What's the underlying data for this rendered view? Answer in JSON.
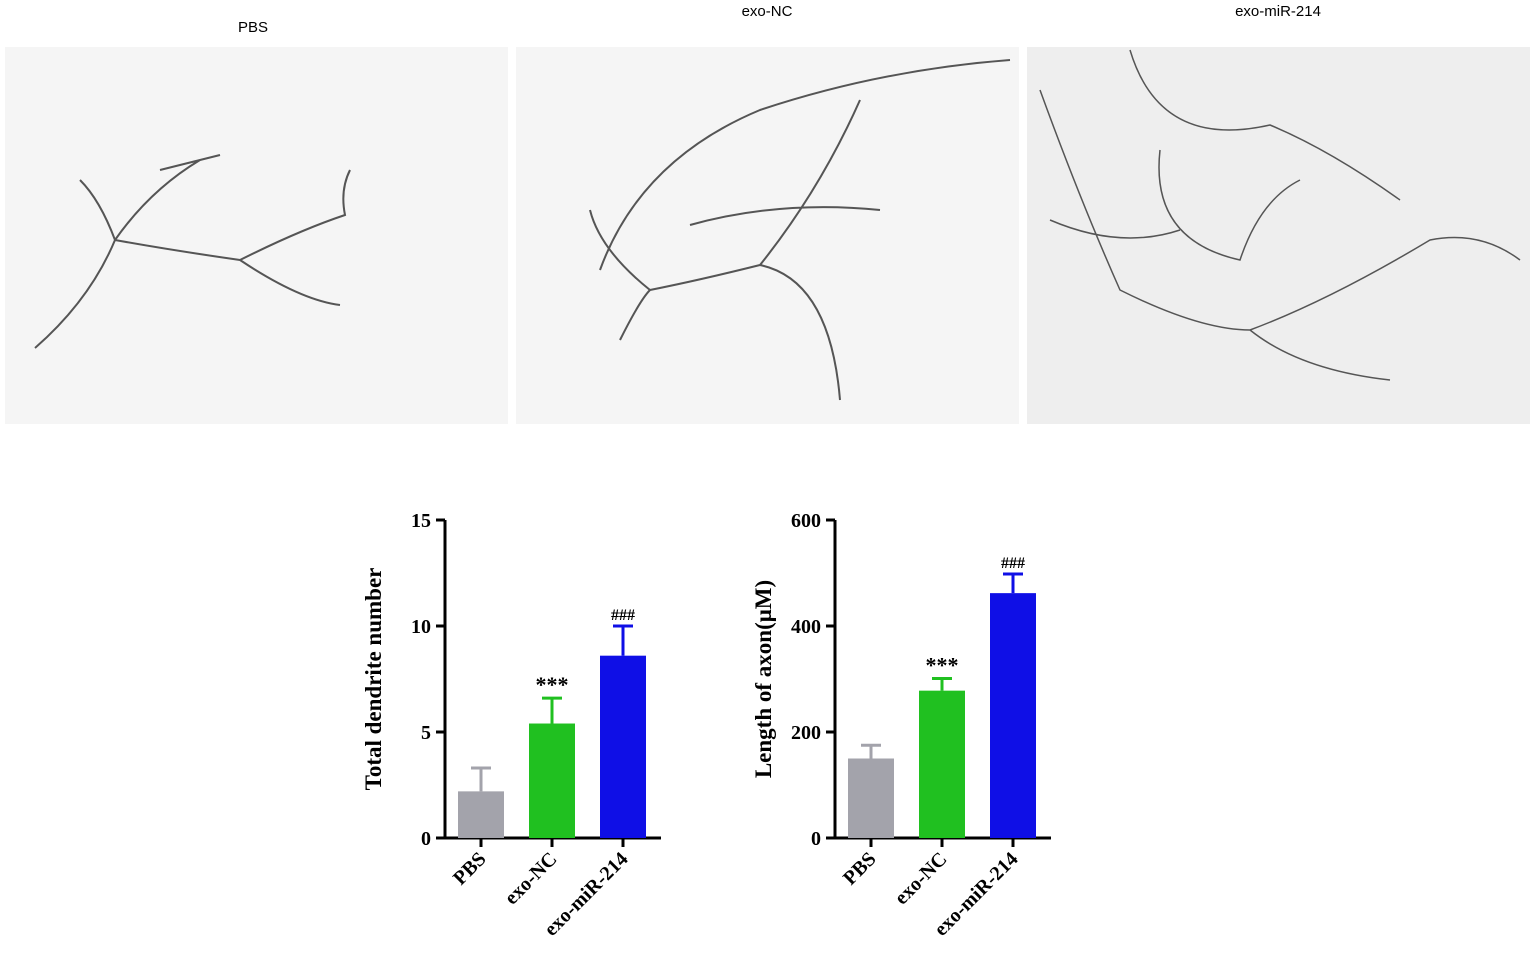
{
  "panels": [
    "PBS",
    "exo-NC",
    "exo-miR-214"
  ],
  "chart_data": [
    {
      "type": "bar",
      "ylabel": "Total dendrite number",
      "categories": [
        "PBS",
        "exo-NC",
        "exo-miR-214"
      ],
      "values": [
        2.2,
        5.4,
        8.6
      ],
      "errors": [
        1.1,
        1.2,
        1.4
      ],
      "colors": [
        "#a3a3ab",
        "#20c020",
        "#0f0fe6"
      ],
      "annotations": [
        null,
        "***",
        "###"
      ],
      "ylim": [
        0,
        15
      ],
      "yticks": [
        0,
        5,
        10,
        15
      ]
    },
    {
      "type": "bar",
      "ylabel": "Length of axon(μM)",
      "categories": [
        "PBS",
        "exo-NC",
        "exo-miR-214"
      ],
      "values": [
        150,
        278,
        462
      ],
      "errors": [
        25,
        23,
        36
      ],
      "colors": [
        "#a3a3ab",
        "#20c020",
        "#0f0fe6"
      ],
      "annotations": [
        null,
        "***",
        "###"
      ],
      "ylim": [
        0,
        600
      ],
      "yticks": [
        0,
        200,
        400,
        600
      ]
    }
  ]
}
